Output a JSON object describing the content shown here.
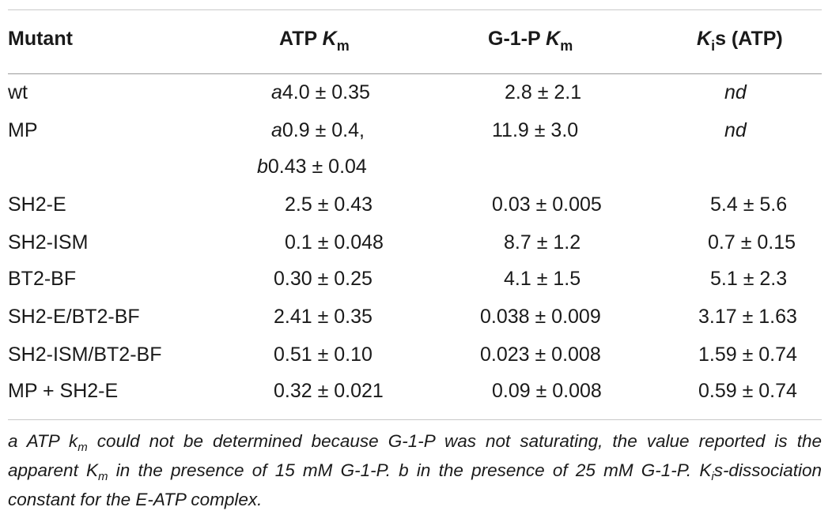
{
  "header": {
    "col1": "Mutant",
    "col2_prefix": "ATP ",
    "col2_sym": "K",
    "col2_sub": "m",
    "col3_prefix": "G-1-P ",
    "col3_sym": "K",
    "col3_sub": "m",
    "col4_sym": "K",
    "col4_sub": "i",
    "col4_suffix": "s (ATP)"
  },
  "rows": [
    {
      "mutant": "wt",
      "atp_mark": "a",
      "atp": "4.0 ± 0.35",
      "g1p": "2.8 ± 2.1",
      "ki": "nd"
    },
    {
      "mutant": "MP",
      "atp_mark": "a",
      "atp": "0.9 ± 0.4,",
      "atp2_mark": "b",
      "atp2": "0.43 ± 0.04",
      "g1p": "11.9 ± 3.0",
      "ki": "nd"
    },
    {
      "mutant": "SH2-E",
      "atp": "2.5 ± 0.43",
      "g1p": "0.03 ± 0.005",
      "ki": "5.4 ± 5.6"
    },
    {
      "mutant": "SH2-ISM",
      "atp": "0.1 ± 0.048",
      "g1p": "8.7 ± 1.2",
      "ki": "0.7 ± 0.15"
    },
    {
      "mutant": "BT2-BF",
      "atp": "0.30 ± 0.25",
      "g1p": "4.1 ± 1.5",
      "ki": "5.1 ± 2.3"
    },
    {
      "mutant": "SH2-E/BT2-BF",
      "atp": "2.41 ± 0.35",
      "g1p": "0.038 ± 0.009",
      "ki": "3.17 ± 1.63"
    },
    {
      "mutant": "SH2-ISM/BT2-BF",
      "atp": "0.51 ± 0.10",
      "g1p": "0.023 ± 0.008",
      "ki": "1.59 ± 0.74"
    },
    {
      "mutant": "MP + SH2-E",
      "atp": "0.32 ± 0.021",
      "g1p": "0.09 ± 0.008",
      "ki": "0.59 ± 0.74"
    }
  ],
  "footnote": {
    "p1": "a ATP k",
    "p1_sub": "m",
    "p2": " could not be determined because G-1-P was not saturating, the value reported is the apparent K",
    "p2_sub": "m",
    "p3": " in the presence of 15 mM G-1-P. b in the presence of 25 mM G-1-P. K",
    "p3_sub": "i",
    "p4": "s-dissociation constant for the E-ATP complex."
  }
}
